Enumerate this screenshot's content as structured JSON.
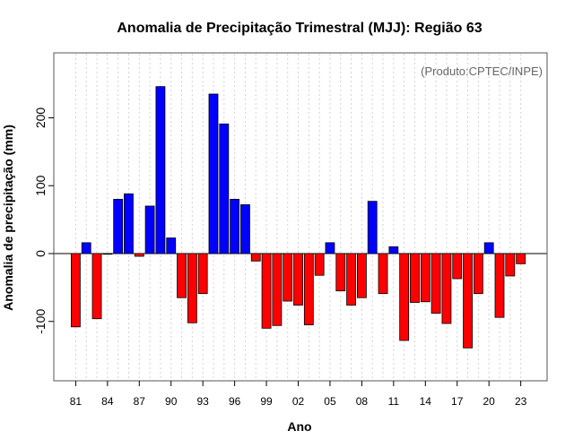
{
  "chart_data": {
    "type": "bar",
    "title": "Anomalia de Precipitação Trimestral (MJJ): Região 63",
    "xlabel": "Ano",
    "ylabel": "Anomalia de precipitação (mm)",
    "annotation": "(Produto:CPTEC/INPE)",
    "legend": "none",
    "grid": true,
    "ylim": [
      -190,
      300
    ],
    "yticks": [
      -100,
      0,
      100,
      200
    ],
    "year_start": 1981,
    "year_end": 2023,
    "xtick_labels": [
      "81",
      "84",
      "87",
      "90",
      "93",
      "96",
      "99",
      "02",
      "05",
      "08",
      "11",
      "14",
      "17",
      "20",
      "23"
    ],
    "categories": [
      "1981",
      "1982",
      "1983",
      "1984",
      "1985",
      "1986",
      "1987",
      "1988",
      "1989",
      "1990",
      "1991",
      "1992",
      "1993",
      "1994",
      "1995",
      "1996",
      "1997",
      "1998",
      "1999",
      "2000",
      "2001",
      "2002",
      "2003",
      "2004",
      "2005",
      "2006",
      "2007",
      "2008",
      "2009",
      "2010",
      "2011",
      "2012",
      "2013",
      "2014",
      "2015",
      "2016",
      "2017",
      "2018",
      "2019",
      "2020",
      "2021",
      "2022",
      "2023"
    ],
    "values": [
      -108,
      16,
      -96,
      -1,
      80,
      88,
      -4,
      70,
      246,
      23,
      -65,
      -102,
      -59,
      235,
      191,
      80,
      72,
      -11,
      -110,
      -106,
      -70,
      -76,
      -105,
      -32,
      16,
      -55,
      -76,
      -65,
      77,
      -59,
      10,
      -128,
      -72,
      -71,
      -88,
      -103,
      -37,
      -139,
      -59,
      16,
      -94,
      -33,
      -15
    ],
    "colors": {
      "positive": "#0000ff",
      "negative": "#ff0000",
      "grid": "#d3d3d3"
    }
  }
}
